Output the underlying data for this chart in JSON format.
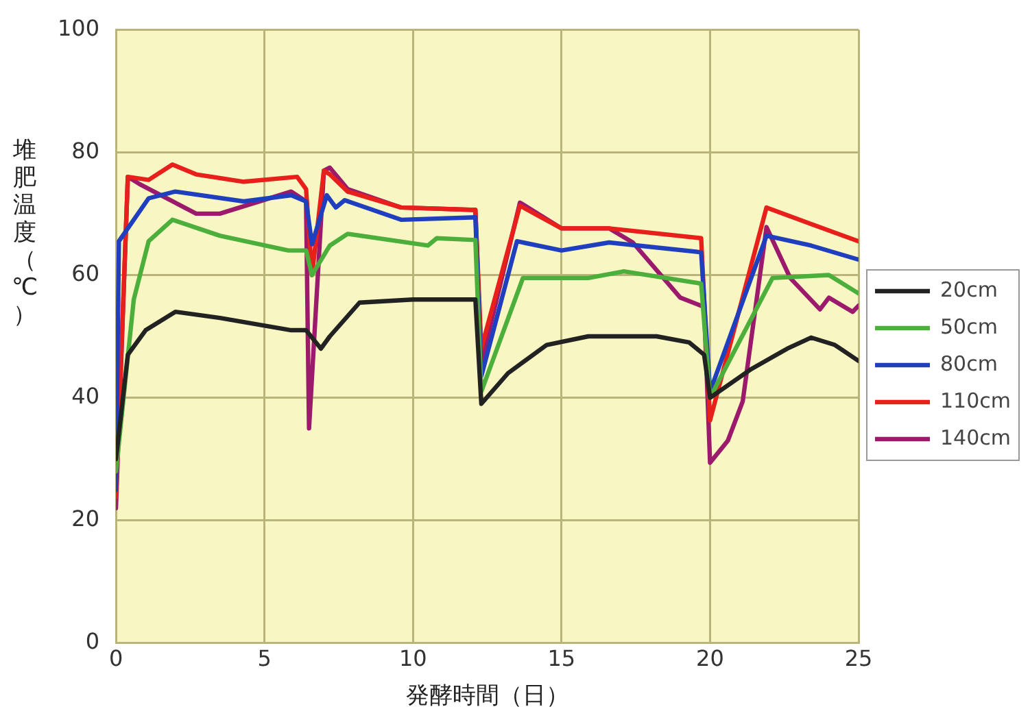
{
  "chart_data": {
    "type": "line",
    "xlabel": "発酵時間（日）",
    "ylabel": "堆肥温度（℃）",
    "xlim": [
      0,
      25
    ],
    "xticks": [
      0,
      5,
      10,
      15,
      20,
      25
    ],
    "ylim": [
      0,
      100
    ],
    "yticks": [
      0,
      20,
      40,
      60,
      80,
      100
    ],
    "grid": true,
    "legend": "right",
    "marker": "none",
    "line_style": "solid",
    "series": [
      {
        "name": "20cm",
        "color": "#222222",
        "x": [
          0,
          0.4,
          1,
          2,
          3.5,
          5.9,
          6.4,
          6.9,
          7.2,
          8.2,
          10,
          12.1,
          12.3,
          13.2,
          14.5,
          15.9,
          17,
          18.2,
          19.3,
          19.8,
          20,
          21.4,
          22.6,
          23.4,
          24.2,
          25
        ],
        "values": [
          30,
          47,
          51,
          54,
          53,
          51,
          51,
          48,
          50,
          55.5,
          56,
          56,
          39,
          44,
          48.6,
          50,
          50,
          50,
          49,
          47,
          40,
          44.7,
          48,
          49.8,
          48.6,
          46
        ]
      },
      {
        "name": "50cm",
        "color": "#4caf3c",
        "x": [
          0,
          0.6,
          1.1,
          1.9,
          3.5,
          5.8,
          6.4,
          6.6,
          7.2,
          7.8,
          10.5,
          10.8,
          12.1,
          12.3,
          13.7,
          15.9,
          17.1,
          19.7,
          20,
          22.1,
          24,
          25
        ],
        "values": [
          28,
          56,
          65.5,
          69,
          66.4,
          64,
          64,
          60,
          64.8,
          66.7,
          64.8,
          66,
          65.7,
          41,
          59.5,
          59.5,
          60.6,
          58.6,
          40,
          59.5,
          60,
          57
        ]
      },
      {
        "name": "80cm",
        "color": "#1f3fbf",
        "x": [
          0,
          0.1,
          1.1,
          2,
          4.3,
          5.9,
          6.4,
          6.6,
          7.1,
          7.4,
          7.7,
          9.6,
          12.1,
          12.3,
          13.5,
          15,
          16.6,
          19.7,
          20,
          21.9,
          23.4,
          25
        ],
        "values": [
          25,
          65.5,
          72.5,
          73.6,
          72,
          73,
          72,
          65,
          73,
          71,
          72.2,
          69,
          69.4,
          43.5,
          65.5,
          64,
          65.3,
          63.7,
          41,
          66.4,
          64.8,
          62.5
        ]
      },
      {
        "name": "110cm",
        "color": "#e8201c",
        "x": [
          0,
          0.4,
          1.1,
          1.9,
          2.7,
          4.3,
          6.1,
          6.4,
          6.6,
          7,
          7.2,
          7.8,
          9.6,
          12.1,
          12.3,
          13.6,
          15,
          16.6,
          19.7,
          20,
          21.9,
          23.4,
          25
        ],
        "values": [
          23.8,
          76,
          75.5,
          78,
          76.4,
          75.2,
          76,
          74,
          60,
          77,
          76.4,
          73.6,
          71,
          70.6,
          48,
          71.3,
          67.6,
          67.6,
          66,
          36.3,
          71,
          68.3,
          65.5
        ]
      },
      {
        "name": "140cm",
        "color": "#9c1a6c",
        "x": [
          0,
          0.4,
          0.8,
          2.7,
          3.5,
          5.9,
          6.4,
          6.5,
          7,
          7.2,
          7.8,
          9.6,
          12.1,
          12.3,
          13.6,
          15,
          16.6,
          17.4,
          19,
          19.8,
          20,
          20.6,
          21.1,
          21.9,
          22.7,
          23.7,
          24,
          24.8,
          25
        ],
        "values": [
          22,
          76,
          74.8,
          70,
          70,
          73.6,
          72,
          35,
          77,
          77.5,
          74,
          71,
          70.6,
          45.6,
          71.8,
          67.6,
          67.6,
          65.3,
          56.3,
          54.8,
          29.4,
          33,
          39.4,
          67.8,
          59.5,
          54.4,
          56.3,
          54,
          55
        ]
      }
    ]
  }
}
